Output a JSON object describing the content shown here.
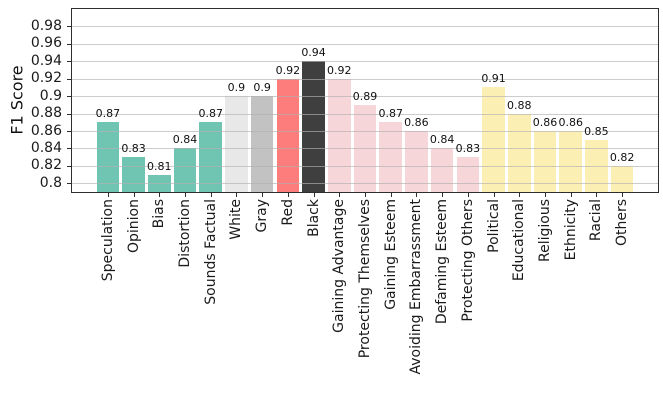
{
  "chart_data": {
    "type": "bar",
    "title": "",
    "xlabel": "",
    "ylabel": "F1 Score",
    "ylim": [
      0.79,
      1.0
    ],
    "yticks": [
      0.8,
      0.82,
      0.84,
      0.86,
      0.88,
      0.9,
      0.92,
      0.94,
      0.96,
      0.98
    ],
    "ytick_labels": [
      "0.8",
      "0.82",
      "0.84",
      "0.86",
      "0.88",
      "0.9",
      "0.92",
      "0.94",
      "0.96",
      "0.98"
    ],
    "grid": true,
    "grid_above_bars": true,
    "legend_position": "none",
    "categories": [
      "Speculation",
      "Opinion",
      "Bias",
      "Distortion",
      "Sounds Factual",
      "White",
      "Gray",
      "Red",
      "Black",
      "Gaining Advantage",
      "Protecting Themselves",
      "Gaining Esteem",
      "Avoiding Embarrassment",
      "Defaming Esteem",
      "Protecting Others",
      "Political",
      "Educational",
      "Religious",
      "Ethnicity",
      "Racial",
      "Others"
    ],
    "values": [
      0.87,
      0.83,
      0.81,
      0.84,
      0.87,
      0.9,
      0.9,
      0.92,
      0.94,
      0.92,
      0.89,
      0.87,
      0.86,
      0.84,
      0.83,
      0.91,
      0.88,
      0.86,
      0.86,
      0.85,
      0.82
    ],
    "bar_value_labels": [
      "0.87",
      "0.83",
      "0.81",
      "0.84",
      "0.87",
      "0.9",
      "0.9",
      "0.92",
      "0.94",
      "0.92",
      "0.89",
      "0.87",
      "0.86",
      "0.84",
      "0.83",
      "0.91",
      "0.88",
      "0.86",
      "0.86",
      "0.85",
      "0.82"
    ],
    "bar_colors": [
      "#6fc5b2",
      "#6fc5b2",
      "#6fc5b2",
      "#6fc5b2",
      "#6fc5b2",
      "#e8e8e8",
      "#c2c2c2",
      "#fd7d7d",
      "#3f3f3f",
      "#f7d6da",
      "#f7d6da",
      "#f7d6da",
      "#f7d6da",
      "#f7d6da",
      "#f7d6da",
      "#fcefb4",
      "#fcefb4",
      "#fcefb4",
      "#fcefb4",
      "#fcefb4",
      "#fcefb4"
    ]
  },
  "colors": {
    "background": "#ffffff",
    "spine": "#2e2e2e",
    "grid": "#b0b0b0",
    "text": "#1a1a1a",
    "group_teal": "#6fc5b2",
    "group_white": "#e8e8e8",
    "group_gray": "#c2c2c2",
    "group_red": "#fd7d7d",
    "group_black": "#3f3f3f",
    "group_pink": "#f7d6da",
    "group_yellow": "#fcefb4"
  }
}
